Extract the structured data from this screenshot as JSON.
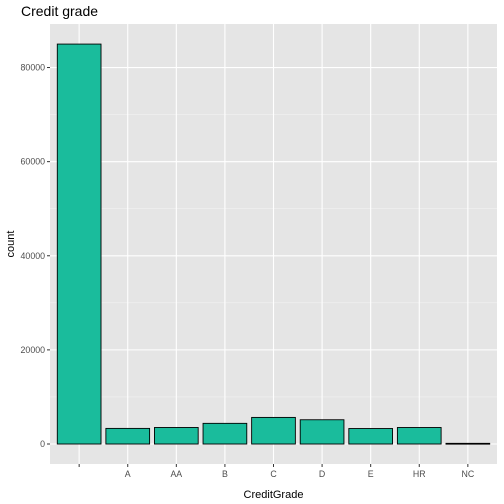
{
  "chart_data": {
    "type": "bar",
    "title": "Credit grade",
    "xlabel": "CreditGrade",
    "ylabel": "count",
    "categories": [
      "",
      "A",
      "AA",
      "B",
      "C",
      "D",
      "E",
      "HR",
      "NC"
    ],
    "values": [
      84984,
      3315,
      3509,
      4389,
      5649,
      5153,
      3289,
      3506,
      141
    ],
    "ylim": [
      -4250,
      89250
    ],
    "yticks": [
      0,
      20000,
      40000,
      60000,
      80000
    ],
    "ytick_labels": [
      "0",
      "20000",
      "40000",
      "60000",
      "80000"
    ],
    "grid": true,
    "legend": "none"
  },
  "colors": {
    "bar_fill": "#1abc9c",
    "bar_stroke": "#000000",
    "panel_bg": "#e5e5e5",
    "grid_major": "#ffffff",
    "grid_minor": "#f2f2f2"
  }
}
